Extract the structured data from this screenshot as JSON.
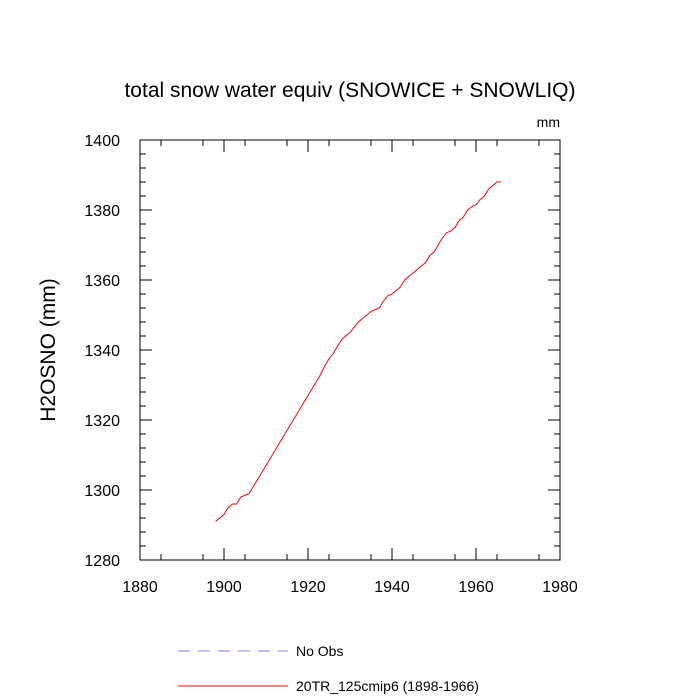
{
  "chart_data": {
    "type": "line",
    "title": "total snow water equiv (SNOWICE + SNOWLIQ)",
    "units": "mm",
    "xlabel": "",
    "ylabel": "H2OSNO  (mm)",
    "xlim": [
      1880,
      1980
    ],
    "ylim": [
      1280,
      1400
    ],
    "x_ticks": [
      1880,
      1900,
      1920,
      1940,
      1960,
      1980
    ],
    "y_ticks": [
      1280,
      1300,
      1320,
      1340,
      1360,
      1380,
      1400
    ],
    "grid": false,
    "legend_position": "bottom",
    "series": [
      {
        "name": "No Obs",
        "color": "#8080ff",
        "dash": "dashed",
        "x": [],
        "y": []
      },
      {
        "name": "20TR_125cmip6 (1898-1966)",
        "color": "#ff0000",
        "dash": "solid",
        "x": [
          1898,
          1899,
          1900,
          1901,
          1902,
          1903,
          1904,
          1905,
          1906,
          1907,
          1908,
          1909,
          1910,
          1911,
          1912,
          1913,
          1914,
          1915,
          1916,
          1917,
          1918,
          1919,
          1920,
          1921,
          1922,
          1923,
          1924,
          1925,
          1926,
          1927,
          1928,
          1929,
          1930,
          1931,
          1932,
          1933,
          1934,
          1935,
          1936,
          1937,
          1938,
          1939,
          1940,
          1941,
          1942,
          1943,
          1944,
          1945,
          1946,
          1947,
          1948,
          1949,
          1950,
          1951,
          1952,
          1953,
          1954,
          1955,
          1956,
          1957,
          1958,
          1959,
          1960,
          1961,
          1962,
          1963,
          1964,
          1965,
          1966
        ],
        "y": [
          1291,
          1292,
          1293,
          1295,
          1296,
          1296,
          1298,
          1298.5,
          1299,
          1301,
          1303,
          1305,
          1307,
          1309,
          1311,
          1313,
          1315,
          1317,
          1319,
          1321,
          1323,
          1325,
          1327,
          1329,
          1331,
          1333,
          1335.5,
          1337.5,
          1339,
          1341,
          1343,
          1344,
          1345,
          1346.5,
          1348,
          1349,
          1350,
          1351,
          1351.5,
          1352,
          1354,
          1355.5,
          1356,
          1357,
          1358,
          1360,
          1361,
          1362,
          1363,
          1364,
          1365,
          1367,
          1368,
          1370,
          1372,
          1373.5,
          1374,
          1375,
          1377,
          1378,
          1380,
          1381,
          1381.5,
          1383,
          1384,
          1386,
          1387,
          1388,
          1388
        ]
      }
    ]
  }
}
